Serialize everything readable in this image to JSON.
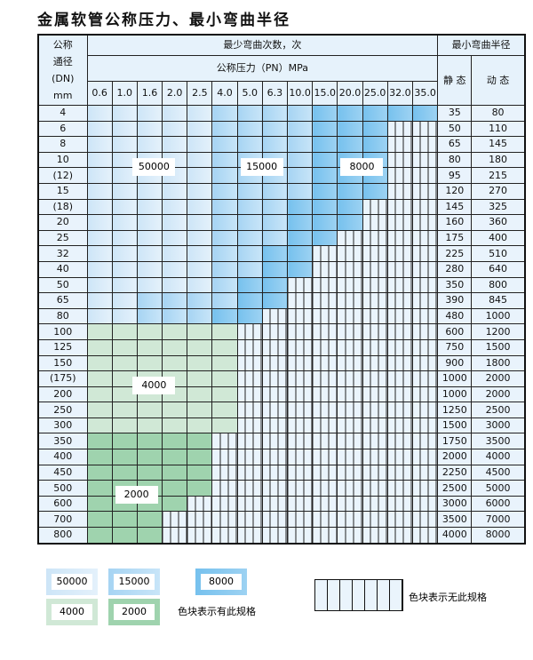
{
  "title": "金属软管公称压力、最小弯曲半径",
  "header": {
    "dn_label": [
      "公称",
      "通径",
      "(DN)",
      "mm"
    ],
    "cycles": "最少弯曲次数，次",
    "pressure": "公称压力（PN）MPa",
    "radius": "最小弯曲半径",
    "static": "静 态",
    "dynamic": "动 态",
    "pressures": [
      "0.6",
      "1.0",
      "1.6",
      "2.0",
      "2.5",
      "4.0",
      "5.0",
      "6.3",
      "10.0",
      "15.0",
      "20.0",
      "25.0",
      "32.0",
      "35.0"
    ]
  },
  "codes": {
    "A": "50000",
    "B": "15000",
    "C": "8000",
    "D": "4000",
    "E": "2000",
    "N": "无此规格"
  },
  "colors": {
    "A": "#cde5f7",
    "B": "#a6d4f3",
    "C": "#76c1ee",
    "D": "#d0e8d6",
    "E": "#9fd3ae",
    "N": "#eaf4fc"
  },
  "rows": [
    {
      "dn": "4",
      "cells": "AAAAABBBBCCCCC",
      "static": "35",
      "dynamic": "80"
    },
    {
      "dn": "6",
      "cells": "AAAAABBBBCCCNN",
      "static": "50",
      "dynamic": "110"
    },
    {
      "dn": "8",
      "cells": "AAAAABBBBCCCNN",
      "static": "65",
      "dynamic": "145"
    },
    {
      "dn": "10",
      "cells": "AAAAABBBBCCCNN",
      "static": "80",
      "dynamic": "180"
    },
    {
      "dn": "(12)",
      "cells": "AAAAABBBBCCCNN",
      "static": "95",
      "dynamic": "215"
    },
    {
      "dn": "15",
      "cells": "AAAAABBBBCCCNN",
      "static": "120",
      "dynamic": "270"
    },
    {
      "dn": "(18)",
      "cells": "AAAAABBBCCCNNN",
      "static": "145",
      "dynamic": "325"
    },
    {
      "dn": "20",
      "cells": "AAAAABBBCCCNNN",
      "static": "160",
      "dynamic": "360"
    },
    {
      "dn": "25",
      "cells": "AAAAABBBCCNNNN",
      "static": "175",
      "dynamic": "400"
    },
    {
      "dn": "32",
      "cells": "AAAAABBCCNNNNN",
      "static": "225",
      "dynamic": "510"
    },
    {
      "dn": "40",
      "cells": "AAAAABBCCNNNNN",
      "static": "280",
      "dynamic": "640"
    },
    {
      "dn": "50",
      "cells": "AAAAABCCNNNNNN",
      "static": "350",
      "dynamic": "800"
    },
    {
      "dn": "65",
      "cells": "AABBBBCCNNNNNN",
      "static": "390",
      "dynamic": "845"
    },
    {
      "dn": "80",
      "cells": "AABBBCCNNNNNNN",
      "static": "480",
      "dynamic": "1000"
    },
    {
      "dn": "100",
      "cells": "DDDDDDNNNNNNNN",
      "static": "600",
      "dynamic": "1200"
    },
    {
      "dn": "125",
      "cells": "DDDDDDNNNNNNNN",
      "static": "750",
      "dynamic": "1500"
    },
    {
      "dn": "150",
      "cells": "DDDDDDNNNNNNNN",
      "static": "900",
      "dynamic": "1800"
    },
    {
      "dn": "(175)",
      "cells": "DDDDDDNNNNNNNN",
      "static": "1000",
      "dynamic": "2000"
    },
    {
      "dn": "200",
      "cells": "DDDDDDNNNNNNNN",
      "static": "1000",
      "dynamic": "2000"
    },
    {
      "dn": "250",
      "cells": "DDDDDDNNNNNNNN",
      "static": "1250",
      "dynamic": "2500"
    },
    {
      "dn": "300",
      "cells": "DDDDDDNNNNNNNN",
      "static": "1500",
      "dynamic": "3000"
    },
    {
      "dn": "350",
      "cells": "EEEEENNNNNNNNN",
      "static": "1750",
      "dynamic": "3500"
    },
    {
      "dn": "400",
      "cells": "EEEEENNNNNNNNN",
      "static": "2000",
      "dynamic": "4000"
    },
    {
      "dn": "450",
      "cells": "EEEEENNNNNNNNN",
      "static": "2250",
      "dynamic": "4500"
    },
    {
      "dn": "500",
      "cells": "EEEEENNNNNNNNN",
      "static": "2500",
      "dynamic": "5000"
    },
    {
      "dn": "600",
      "cells": "EEEENNNNNNNNNN",
      "static": "3000",
      "dynamic": "6000"
    },
    {
      "dn": "700",
      "cells": "EEENNNNNNNNNNN",
      "static": "3500",
      "dynamic": "7000"
    },
    {
      "dn": "800",
      "cells": "EEENNNNNNNNNNN",
      "static": "4000",
      "dynamic": "8000"
    }
  ],
  "block_labels": {
    "A": "50000",
    "B": "15000",
    "C": "8000",
    "D": "4000",
    "E": "2000"
  },
  "legend": {
    "items": [
      {
        "code": "A",
        "label": "50000"
      },
      {
        "code": "B",
        "label": "15000"
      },
      {
        "code": "C",
        "label": "8000"
      },
      {
        "code": "D",
        "label": "4000"
      },
      {
        "code": "E",
        "label": "2000"
      }
    ],
    "has_spec_note": "色块表示有此规格",
    "no_spec_note": "色块表示无此规格"
  }
}
